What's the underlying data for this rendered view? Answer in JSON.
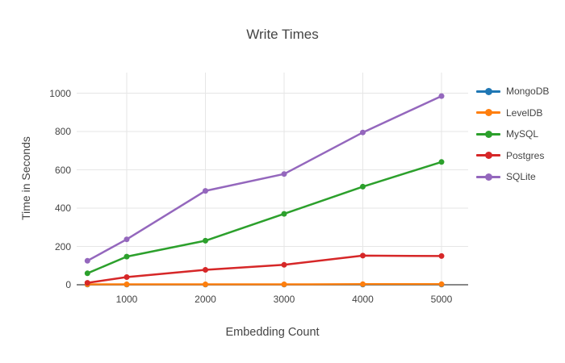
{
  "title": "Write Times",
  "chart_data": {
    "type": "line",
    "title": "Write Times",
    "xlabel": "Embedding Count",
    "ylabel": "Time in Seconds",
    "x": [
      500,
      1000,
      2000,
      3000,
      4000,
      5000
    ],
    "series": [
      {
        "name": "MongoDB",
        "color": "#1f77b4",
        "values": [
          1,
          1,
          1,
          1,
          1,
          1
        ]
      },
      {
        "name": "LevelDB",
        "color": "#ff7f0e",
        "values": [
          2,
          2,
          2,
          2,
          3,
          3
        ]
      },
      {
        "name": "MySQL",
        "color": "#2ca02c",
        "values": [
          60,
          147,
          230,
          370,
          512,
          641
        ]
      },
      {
        "name": "Postgres",
        "color": "#d62728",
        "values": [
          10,
          40,
          78,
          104,
          152,
          150
        ]
      },
      {
        "name": "SQLite",
        "color": "#9467bd",
        "values": [
          125,
          237,
          490,
          578,
          795,
          985
        ]
      }
    ],
    "xticks": [
      1000,
      2000,
      3000,
      4000,
      5000
    ],
    "yticks": [
      0,
      200,
      400,
      600,
      800,
      1000
    ],
    "ylim": [
      0,
      1100
    ],
    "xlim": [
      360,
      5340
    ],
    "grid": true,
    "legend_position": "right"
  },
  "colors": {
    "background": "#ffffff",
    "text": "#444444",
    "gridline": "#e6e6e6",
    "zeroline": "#888888"
  }
}
